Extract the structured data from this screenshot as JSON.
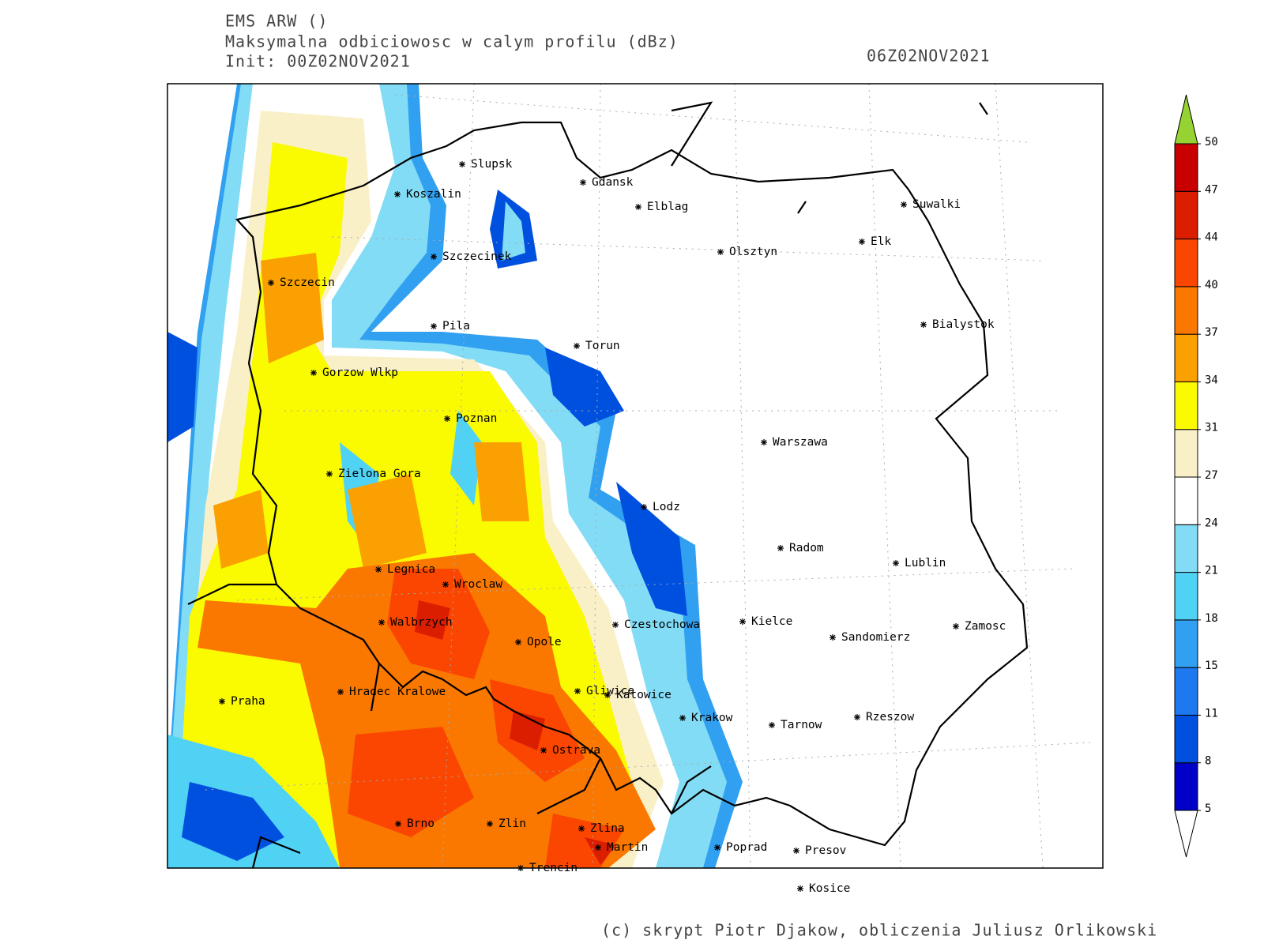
{
  "header": {
    "model": "EMS ARW ()",
    "field": "Maksymalna odbiciowosc w calym profilu (dBz)",
    "init": "Init: 00Z02NOV2021",
    "valid": "06Z02NOV2021"
  },
  "cities": [
    "Slupsk",
    "Koszalin",
    "Gdansk",
    "Elblag",
    "Suwalki",
    "Elk",
    "Olsztyn",
    "Szczecinek",
    "Szczecin",
    "Pila",
    "Torun",
    "Bialystok",
    "Gorzow Wlkp",
    "Poznan",
    "Warszawa",
    "Zielona Gora",
    "Lodz",
    "Radom",
    "Lublin",
    "Legnica",
    "Wroclaw",
    "Walbrzych",
    "Czestochowa",
    "Kielce",
    "Zamosc",
    "Sandomierz",
    "Opole",
    "Praha",
    "Hradec Kralowe",
    "Gliwice",
    "Katowice",
    "Krakow",
    "Tarnow",
    "Rzeszow",
    "Ostrava",
    "Brno",
    "Zlin",
    "Zlina",
    "Martin",
    "Poprad",
    "Presov",
    "Trencin",
    "Kosice"
  ],
  "colorbar": {
    "levels": [
      5,
      8,
      11,
      15,
      18,
      21,
      24,
      27,
      31,
      34,
      37,
      40,
      44,
      47,
      50
    ],
    "colors": [
      "#0000c8",
      "#0050e0",
      "#1e78f0",
      "#32a0f0",
      "#50d2f5",
      "#82dcf5",
      "#ffffff",
      "#faf0c8",
      "#fafa00",
      "#faa000",
      "#fa7800",
      "#fa4600",
      "#dc1e00",
      "#c80000"
    ],
    "over_color": "#96d232",
    "under_color": "#ffffff"
  },
  "footer": "(c) skrypt Piotr Djakow, obliczenia Juliusz Orlikowski"
}
